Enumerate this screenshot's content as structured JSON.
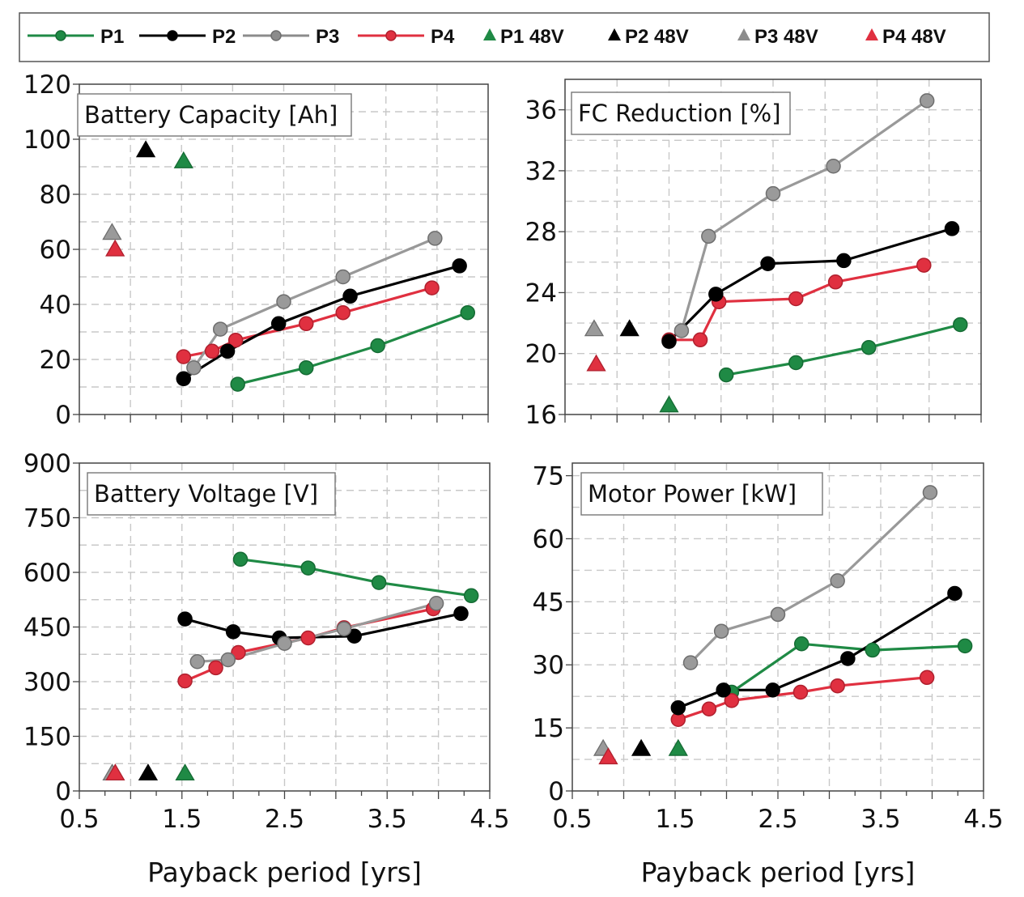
{
  "legend": [
    {
      "label": "P1",
      "color": "#1f8a45",
      "marker": "circle"
    },
    {
      "label": "P2",
      "color": "#000000",
      "marker": "circle"
    },
    {
      "label": "P3",
      "color": "#8c8c8c",
      "marker": "circle"
    },
    {
      "label": "P4",
      "color": "#e03040",
      "marker": "circle"
    },
    {
      "label": "P1 48V",
      "color": "#1f8a45",
      "marker": "triangle"
    },
    {
      "label": "P2 48V",
      "color": "#000000",
      "marker": "triangle"
    },
    {
      "label": "P3 48V",
      "color": "#8c8c8c",
      "marker": "triangle"
    },
    {
      "label": "P4 48V",
      "color": "#e03040",
      "marker": "triangle"
    }
  ],
  "chart_data": [
    {
      "type": "line",
      "title": "Battery Capacity [Ah]",
      "xlabel": "",
      "xlim": [
        0.5,
        4.5
      ],
      "ylim": [
        0,
        120
      ],
      "yticks": [
        "0",
        "20",
        "40",
        "60",
        "80",
        "100",
        "120"
      ],
      "xticks": [],
      "grid": true,
      "series": [
        {
          "name": "P1",
          "x": [
            2.05,
            2.72,
            3.42,
            4.3
          ],
          "y": [
            11,
            17,
            25,
            37
          ]
        },
        {
          "name": "P2",
          "x": [
            1.52,
            1.95,
            2.45,
            3.15,
            4.22
          ],
          "y": [
            13,
            23,
            33,
            43,
            54
          ]
        },
        {
          "name": "P3",
          "x": [
            1.62,
            1.88,
            2.5,
            3.08,
            3.98
          ],
          "y": [
            17,
            31,
            41,
            50,
            64
          ]
        },
        {
          "name": "P4",
          "x": [
            1.52,
            1.8,
            2.03,
            2.72,
            3.08,
            3.95
          ],
          "y": [
            21,
            23,
            27,
            33,
            37,
            46
          ]
        },
        {
          "name": "P1 48V",
          "x": [
            1.52
          ],
          "y": [
            92
          ]
        },
        {
          "name": "P2 48V",
          "x": [
            1.15
          ],
          "y": [
            96
          ]
        },
        {
          "name": "P3 48V",
          "x": [
            0.82
          ],
          "y": [
            66
          ]
        },
        {
          "name": "P4 48V",
          "x": [
            0.85
          ],
          "y": [
            60
          ]
        }
      ]
    },
    {
      "type": "line",
      "title": "FC Reduction [%]",
      "xlabel": "",
      "xlim": [
        0.5,
        4.5
      ],
      "ylim": [
        16,
        38
      ],
      "yticks": [
        "16",
        "20",
        "24",
        "28",
        "32",
        "36"
      ],
      "xticks": [],
      "grid": true,
      "series": [
        {
          "name": "P1",
          "x": [
            2.05,
            2.72,
            3.42,
            4.3
          ],
          "y": [
            18.6,
            19.4,
            20.4,
            21.9
          ]
        },
        {
          "name": "P2",
          "x": [
            1.5,
            1.95,
            2.45,
            3.18,
            4.22
          ],
          "y": [
            20.8,
            23.9,
            25.9,
            26.1,
            28.2
          ]
        },
        {
          "name": "P3",
          "x": [
            1.62,
            1.88,
            2.5,
            3.08,
            3.98
          ],
          "y": [
            21.5,
            27.7,
            30.5,
            32.3,
            36.6
          ]
        },
        {
          "name": "P4",
          "x": [
            1.5,
            1.8,
            1.98,
            2.72,
            3.1,
            3.95
          ],
          "y": [
            20.9,
            20.9,
            23.4,
            23.6,
            24.7,
            25.8
          ]
        },
        {
          "name": "P1 48V",
          "x": [
            1.5
          ],
          "y": [
            16.6
          ]
        },
        {
          "name": "P2 48V",
          "x": [
            1.12
          ],
          "y": [
            21.6
          ]
        },
        {
          "name": "P3 48V",
          "x": [
            0.78
          ],
          "y": [
            21.6
          ]
        },
        {
          "name": "P4 48V",
          "x": [
            0.8
          ],
          "y": [
            19.3
          ]
        }
      ]
    },
    {
      "type": "line",
      "title": "Battery Voltage [V]",
      "xlabel": "Payback period [yrs]",
      "xlim": [
        0.5,
        4.5
      ],
      "ylim": [
        0,
        900
      ],
      "yticks": [
        "0",
        "150",
        "300",
        "450",
        "600",
        "750",
        "900"
      ],
      "xticks": [
        "0.5",
        "1.5",
        "2.5",
        "3.5",
        "4.5"
      ],
      "grid": true,
      "series": [
        {
          "name": "P1",
          "x": [
            2.07,
            2.73,
            3.42,
            4.32
          ],
          "y": [
            636,
            612,
            572,
            536
          ]
        },
        {
          "name": "P2",
          "x": [
            1.53,
            2.0,
            2.45,
            3.18,
            4.22
          ],
          "y": [
            472,
            437,
            420,
            425,
            487
          ]
        },
        {
          "name": "P3",
          "x": [
            1.65,
            1.95,
            2.5,
            3.08,
            3.98
          ],
          "y": [
            355,
            360,
            405,
            445,
            515
          ]
        },
        {
          "name": "P4",
          "x": [
            1.53,
            1.83,
            2.05,
            2.73,
            3.08,
            3.95
          ],
          "y": [
            302,
            338,
            380,
            420,
            448,
            500
          ]
        },
        {
          "name": "P1 48V",
          "x": [
            1.53
          ],
          "y": [
            48
          ]
        },
        {
          "name": "P2 48V",
          "x": [
            1.17
          ],
          "y": [
            48
          ]
        },
        {
          "name": "P3 48V",
          "x": [
            0.82
          ],
          "y": [
            48
          ]
        },
        {
          "name": "P4 48V",
          "x": [
            0.85
          ],
          "y": [
            48
          ]
        }
      ]
    },
    {
      "type": "line",
      "title": "Motor Power [kW]",
      "xlabel": "Payback period [yrs]",
      "xlim": [
        0.5,
        4.5
      ],
      "ylim": [
        0,
        78
      ],
      "yticks": [
        "0",
        "15",
        "30",
        "45",
        "60",
        "75"
      ],
      "xticks": [
        "0.5",
        "1.5",
        "2.5",
        "3.5",
        "4.5"
      ],
      "grid": true,
      "series": [
        {
          "name": "P1",
          "x": [
            2.05,
            2.73,
            3.42,
            4.32
          ],
          "y": [
            23.5,
            35,
            33.5,
            34.5
          ]
        },
        {
          "name": "P2",
          "x": [
            1.53,
            1.97,
            2.45,
            3.18,
            4.22
          ],
          "y": [
            19.8,
            24,
            24,
            31.5,
            47
          ]
        },
        {
          "name": "P3",
          "x": [
            1.65,
            1.95,
            2.5,
            3.08,
            3.98
          ],
          "y": [
            30.5,
            38,
            42,
            50,
            71
          ]
        },
        {
          "name": "P4",
          "x": [
            1.53,
            1.83,
            2.05,
            2.72,
            3.08,
            3.95
          ],
          "y": [
            17,
            19.5,
            21.5,
            23.5,
            25,
            27
          ]
        },
        {
          "name": "P1 48V",
          "x": [
            1.53
          ],
          "y": [
            10
          ]
        },
        {
          "name": "P2 48V",
          "x": [
            1.17
          ],
          "y": [
            10
          ]
        },
        {
          "name": "P3 48V",
          "x": [
            0.8
          ],
          "y": [
            10
          ]
        },
        {
          "name": "P4 48V",
          "x": [
            0.85
          ],
          "y": [
            8
          ]
        }
      ]
    }
  ]
}
